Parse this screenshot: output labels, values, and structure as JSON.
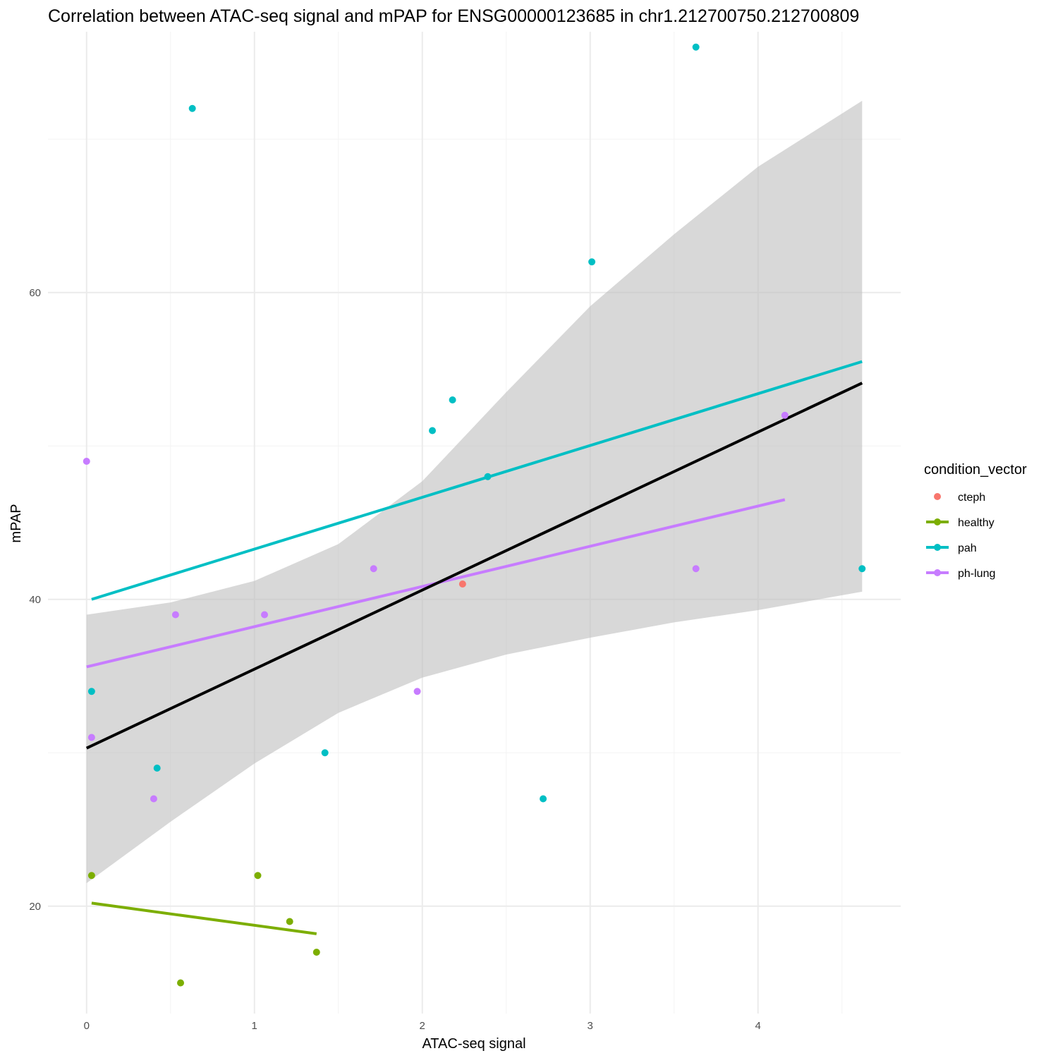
{
  "chart_data": {
    "type": "scatter",
    "title": "Correlation between ATAC-seq signal and mPAP for ENSG00000123685 in chr1.212700750.212700809",
    "xlabel": "ATAC-seq signal",
    "ylabel": "mPAP",
    "xlim": [
      -0.23,
      4.85
    ],
    "ylim": [
      13.0,
      77.0
    ],
    "x_ticks": [
      0,
      1,
      2,
      3,
      4
    ],
    "y_ticks": [
      20,
      40,
      60
    ],
    "grid": true,
    "legend": {
      "title": "condition_vector",
      "position": "right"
    },
    "series": [
      {
        "name": "cteph",
        "color": "#F8766D",
        "points": [
          [
            2.24,
            41
          ]
        ],
        "fit": null
      },
      {
        "name": "healthy",
        "color": "#7CAE00",
        "points": [
          [
            0.03,
            22
          ],
          [
            1.02,
            22
          ],
          [
            1.21,
            19
          ],
          [
            1.37,
            17
          ],
          [
            0.56,
            15
          ]
        ],
        "fit": [
          [
            0.03,
            20.2
          ],
          [
            1.37,
            18.2
          ]
        ]
      },
      {
        "name": "pah",
        "color": "#00BFC4",
        "points": [
          [
            3.63,
            76
          ],
          [
            0.63,
            72
          ],
          [
            3.01,
            62
          ],
          [
            2.18,
            53
          ],
          [
            2.06,
            51
          ],
          [
            2.39,
            48
          ],
          [
            4.62,
            42
          ],
          [
            0.03,
            34
          ],
          [
            1.42,
            30
          ],
          [
            0.42,
            29
          ],
          [
            2.72,
            27
          ]
        ],
        "fit": [
          [
            0.03,
            40.0
          ],
          [
            4.62,
            55.5
          ]
        ]
      },
      {
        "name": "ph-lung",
        "color": "#C77CFF",
        "points": [
          [
            0.0,
            49
          ],
          [
            4.16,
            52
          ],
          [
            1.71,
            42
          ],
          [
            3.63,
            42
          ],
          [
            0.53,
            39
          ],
          [
            1.06,
            39
          ],
          [
            1.97,
            34
          ],
          [
            0.03,
            31
          ],
          [
            0.4,
            27
          ]
        ],
        "fit": [
          [
            0.0,
            35.6
          ],
          [
            4.16,
            46.5
          ]
        ]
      }
    ],
    "overall_fit": {
      "color": "#000000",
      "line": [
        [
          0.0,
          30.3
        ],
        [
          4.62,
          54.1
        ]
      ],
      "ci_band": {
        "x": [
          0.0,
          0.5,
          1.0,
          1.5,
          2.0,
          2.5,
          3.0,
          3.5,
          4.0,
          4.62
        ],
        "upper": [
          39.0,
          39.8,
          41.2,
          43.6,
          47.7,
          53.5,
          59.1,
          63.8,
          68.2,
          72.5
        ],
        "lower": [
          21.5,
          25.5,
          29.3,
          32.6,
          34.9,
          36.4,
          37.5,
          38.5,
          39.3,
          40.5
        ],
        "fill": "#bebebe",
        "opacity": 0.6
      }
    }
  }
}
